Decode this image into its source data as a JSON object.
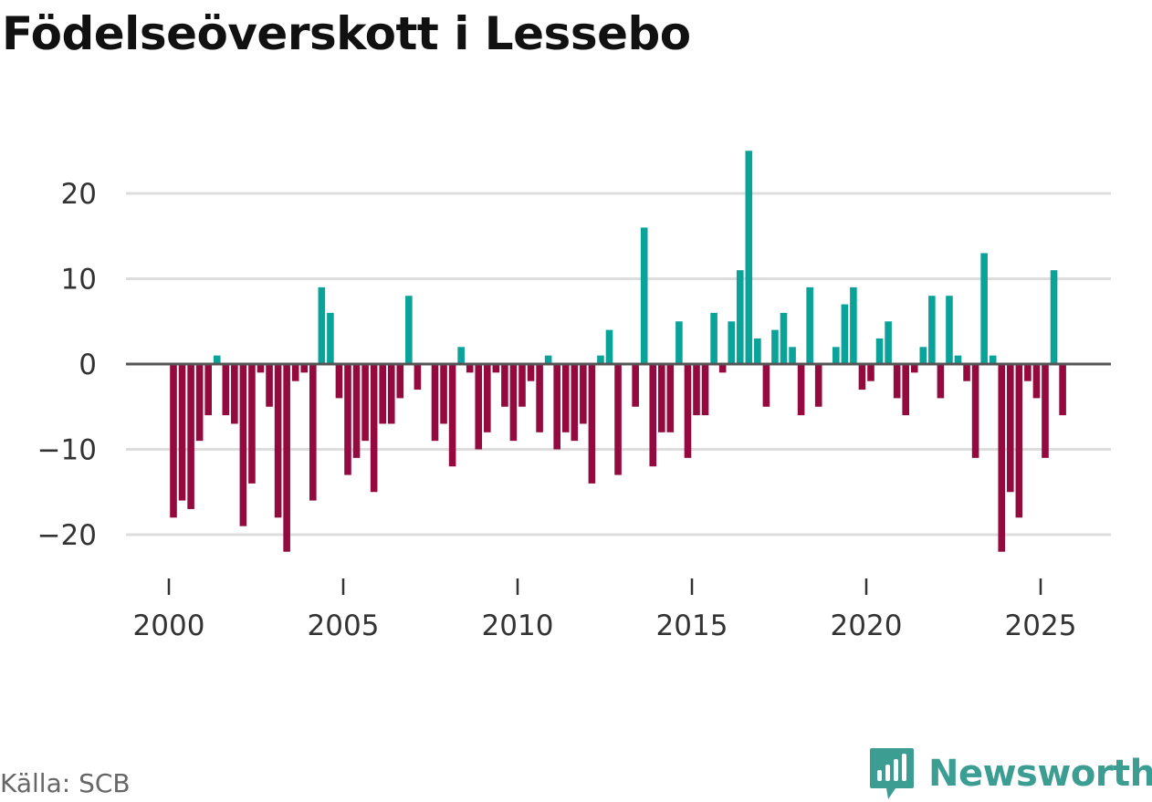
{
  "title": "Födelseöverskott i Lessebo",
  "source": "Källa: SCB",
  "brand": "Newsworthy",
  "colors": {
    "positive": "#0aa39a",
    "negative": "#950a3e",
    "grid": "#dddddd",
    "zero_line": "#555555",
    "brand": "#3c9d93"
  },
  "chart_data": {
    "type": "bar",
    "title": "Födelseöverskott i Lessebo",
    "xlabel": "",
    "ylabel": "",
    "ylim": [
      -23,
      25
    ],
    "xlim": [
      1999.8,
      2026.4
    ],
    "y_ticks": [
      20,
      10,
      0,
      -10,
      -20
    ],
    "y_tick_labels": [
      "20",
      "10",
      "0",
      "−10",
      "−20"
    ],
    "x_ticks": [
      2000,
      2005,
      2010,
      2015,
      2020,
      2025
    ],
    "x_tick_labels": [
      "2000",
      "2005",
      "2010",
      "2015",
      "2020",
      "2025"
    ],
    "frequency": "monthly (every 3rd month shown as quarter index)",
    "start_year": 2000,
    "values": [
      -18,
      -16,
      -17,
      -9,
      -6,
      1,
      -6,
      -7,
      -19,
      -14,
      -1,
      -5,
      -18,
      -22,
      -2,
      -1,
      -16,
      9,
      6,
      -4,
      -13,
      -11,
      -9,
      -15,
      -7,
      -7,
      -4,
      8,
      -3,
      0,
      -9,
      -7,
      -12,
      2,
      -1,
      -10,
      -8,
      -1,
      -5,
      -9,
      -5,
      -2,
      -8,
      1,
      -10,
      -8,
      -9,
      -7,
      -14,
      1,
      4,
      -13,
      0,
      -5,
      16,
      -12,
      -8,
      -8,
      5,
      -11,
      -6,
      -6,
      6,
      -1,
      5,
      11,
      25,
      3,
      -5,
      4,
      6,
      2,
      -6,
      9,
      -5,
      0,
      2,
      7,
      9,
      -3,
      -2,
      3,
      5,
      -4,
      -6,
      -1,
      2,
      8,
      -4,
      8,
      1,
      -2,
      -11,
      13,
      1,
      -22,
      -15,
      -18,
      -2,
      -4,
      -11,
      11,
      -6
    ]
  }
}
